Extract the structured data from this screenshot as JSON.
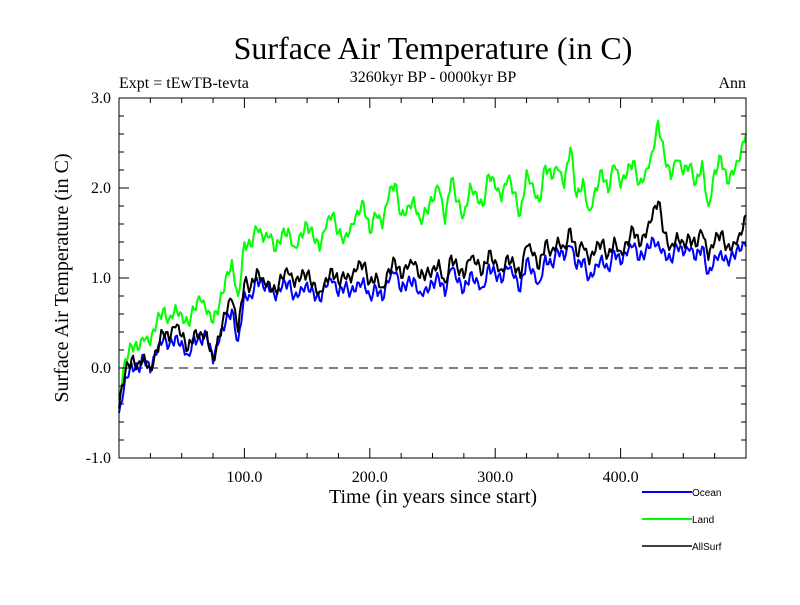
{
  "chart_data": {
    "type": "line",
    "title": "Surface Air Temperature (in C)",
    "subtitle": "3260kyr BP - 0000kyr BP",
    "left_label": "Expt = tEwTB-tevta",
    "right_label": "Ann",
    "xlabel": "Time (in years since start)",
    "ylabel": "Surface Air Temperature (in C)",
    "xlim": [
      0,
      500
    ],
    "ylim": [
      -1.0,
      3.0
    ],
    "x_major_ticks": [
      100,
      200,
      300,
      400
    ],
    "x_tick_labels": [
      "100.0",
      "200.0",
      "300.0",
      "400.0"
    ],
    "x_minor_step": 25,
    "y_major_ticks": [
      -1.0,
      0.0,
      1.0,
      2.0,
      3.0
    ],
    "y_tick_labels": [
      "-1.0",
      "0.0",
      "1.0",
      "2.0",
      "3.0"
    ],
    "y_minor_step": 0.2,
    "reference_line": {
      "y": 0.0,
      "style": "dashed"
    },
    "grid": false,
    "legend_position": "bottom-right",
    "x": [
      0,
      5,
      10,
      15,
      20,
      25,
      30,
      35,
      40,
      45,
      50,
      55,
      60,
      65,
      70,
      75,
      80,
      85,
      90,
      95,
      100,
      105,
      110,
      115,
      120,
      125,
      130,
      135,
      140,
      145,
      150,
      155,
      160,
      165,
      170,
      175,
      180,
      185,
      190,
      195,
      200,
      205,
      210,
      215,
      220,
      225,
      230,
      235,
      240,
      245,
      250,
      255,
      260,
      265,
      270,
      275,
      280,
      285,
      290,
      295,
      300,
      305,
      310,
      315,
      320,
      325,
      330,
      335,
      340,
      345,
      350,
      355,
      360,
      365,
      370,
      375,
      380,
      385,
      390,
      395,
      400,
      405,
      410,
      415,
      420,
      425,
      430,
      435,
      440,
      445,
      450,
      455,
      460,
      465,
      470,
      475,
      480,
      485,
      490,
      495,
      500
    ],
    "series": [
      {
        "name": "Ocean",
        "color": "#0000ff",
        "values": [
          -0.5,
          -0.1,
          0.05,
          0.0,
          0.1,
          -0.05,
          0.15,
          0.3,
          0.25,
          0.35,
          0.3,
          0.15,
          0.35,
          0.3,
          0.35,
          0.05,
          0.3,
          0.5,
          0.65,
          0.3,
          0.85,
          0.8,
          1.0,
          0.9,
          0.85,
          0.75,
          0.9,
          0.95,
          0.8,
          0.9,
          0.95,
          0.85,
          0.75,
          0.9,
          0.95,
          0.8,
          0.9,
          0.85,
          0.95,
          1.0,
          0.8,
          0.9,
          0.75,
          0.95,
          1.05,
          0.85,
          0.95,
          1.0,
          0.85,
          0.9,
          0.95,
          1.0,
          0.8,
          1.1,
          0.95,
          0.85,
          1.05,
          1.0,
          0.9,
          1.15,
          1.05,
          0.95,
          1.1,
          1.0,
          0.85,
          1.2,
          1.1,
          0.95,
          1.25,
          1.15,
          1.3,
          1.2,
          1.35,
          1.1,
          1.2,
          1.0,
          1.15,
          1.25,
          1.1,
          1.3,
          1.15,
          1.25,
          1.35,
          1.2,
          1.3,
          1.45,
          1.4,
          1.3,
          1.2,
          1.35,
          1.25,
          1.3,
          1.2,
          1.35,
          1.05,
          1.25,
          1.3,
          1.2,
          1.25,
          1.3,
          1.35
        ]
      },
      {
        "name": "Land",
        "color": "#00ff00",
        "values": [
          -0.3,
          0.1,
          0.25,
          0.2,
          0.3,
          0.25,
          0.5,
          0.65,
          0.55,
          0.7,
          0.6,
          0.5,
          0.65,
          0.75,
          0.6,
          0.5,
          0.7,
          1.0,
          1.2,
          0.8,
          1.4,
          1.35,
          1.55,
          1.4,
          1.45,
          1.3,
          1.5,
          1.55,
          1.35,
          1.5,
          1.6,
          1.45,
          1.3,
          1.55,
          1.7,
          1.5,
          1.45,
          1.6,
          1.75,
          1.85,
          1.5,
          1.7,
          1.55,
          1.9,
          2.05,
          1.7,
          1.8,
          1.9,
          1.65,
          1.75,
          1.85,
          2.0,
          1.6,
          2.1,
          1.85,
          1.7,
          2.05,
          1.95,
          1.8,
          2.15,
          2.0,
          1.85,
          2.1,
          1.95,
          1.7,
          2.2,
          2.05,
          1.85,
          2.25,
          2.1,
          2.2,
          2.0,
          2.45,
          1.9,
          2.1,
          1.75,
          2.0,
          2.2,
          1.95,
          2.25,
          2.0,
          2.15,
          2.3,
          2.05,
          2.2,
          2.4,
          2.75,
          2.35,
          2.1,
          2.3,
          2.15,
          2.25,
          2.05,
          2.3,
          1.8,
          2.2,
          2.35,
          2.05,
          2.15,
          2.3,
          2.6
        ]
      },
      {
        "name": "AllSurf",
        "color": "#000000",
        "values": [
          -0.45,
          -0.05,
          0.1,
          0.05,
          0.15,
          0.0,
          0.2,
          0.4,
          0.3,
          0.45,
          0.35,
          0.2,
          0.4,
          0.4,
          0.4,
          0.1,
          0.35,
          0.6,
          0.75,
          0.4,
          0.95,
          0.9,
          1.1,
          1.0,
          0.95,
          0.85,
          1.0,
          1.05,
          0.9,
          1.0,
          1.05,
          0.95,
          0.85,
          1.0,
          1.1,
          0.95,
          1.0,
          0.95,
          1.1,
          1.15,
          0.95,
          1.05,
          0.9,
          1.1,
          1.2,
          1.0,
          1.1,
          1.15,
          1.0,
          1.05,
          1.1,
          1.2,
          0.95,
          1.25,
          1.1,
          1.0,
          1.2,
          1.15,
          1.05,
          1.3,
          1.2,
          1.1,
          1.25,
          1.15,
          1.0,
          1.35,
          1.25,
          1.1,
          1.4,
          1.3,
          1.45,
          1.35,
          1.55,
          1.25,
          1.35,
          1.15,
          1.3,
          1.4,
          1.25,
          1.45,
          1.3,
          1.4,
          1.55,
          1.35,
          1.45,
          1.65,
          1.85,
          1.5,
          1.35,
          1.5,
          1.4,
          1.45,
          1.35,
          1.5,
          1.2,
          1.4,
          1.5,
          1.35,
          1.4,
          1.5,
          1.7
        ]
      }
    ]
  }
}
